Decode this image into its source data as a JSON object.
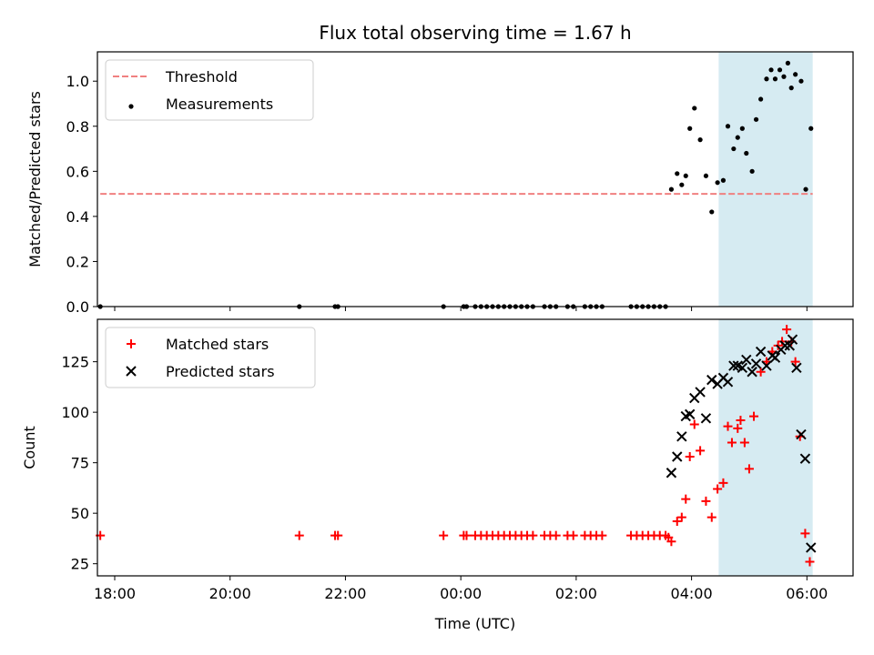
{
  "title": "Flux total observing time = 1.67 h",
  "chart_data": [
    {
      "type": "scatter",
      "ylabel": "Matched/Predicted stars",
      "ylim": [
        0,
        1.13
      ],
      "yticks": [
        "0.0",
        "0.2",
        "0.4",
        "0.6",
        "0.8",
        "1.0"
      ],
      "ytick_values": [
        0,
        0.2,
        0.4,
        0.6,
        0.8,
        1.0
      ],
      "xlim": [
        17.7,
        30.8
      ],
      "highlight_span": [
        28.47,
        30.1
      ],
      "legend": {
        "placement": "upper left",
        "entries": [
          "Threshold",
          "Measurements"
        ]
      },
      "threshold": {
        "name": "Threshold",
        "value": 0.5,
        "x_range": [
          17.75,
          30.1
        ],
        "color": "#f08080"
      },
      "series": [
        {
          "name": "Measurements",
          "color": "#000000",
          "points": [
            [
              17.75,
              0
            ],
            [
              21.2,
              0
            ],
            [
              21.82,
              0
            ],
            [
              21.87,
              0
            ],
            [
              23.7,
              0
            ],
            [
              24.05,
              0
            ],
            [
              24.1,
              0
            ],
            [
              24.25,
              0
            ],
            [
              24.35,
              0
            ],
            [
              24.45,
              0
            ],
            [
              24.55,
              0
            ],
            [
              24.65,
              0
            ],
            [
              24.75,
              0
            ],
            [
              24.85,
              0
            ],
            [
              24.95,
              0
            ],
            [
              25.05,
              0
            ],
            [
              25.15,
              0
            ],
            [
              25.25,
              0
            ],
            [
              25.45,
              0
            ],
            [
              25.55,
              0
            ],
            [
              25.65,
              0
            ],
            [
              25.85,
              0
            ],
            [
              25.95,
              0
            ],
            [
              26.15,
              0
            ],
            [
              26.25,
              0
            ],
            [
              26.35,
              0
            ],
            [
              26.45,
              0
            ],
            [
              26.95,
              0
            ],
            [
              27.05,
              0
            ],
            [
              27.15,
              0
            ],
            [
              27.25,
              0
            ],
            [
              27.35,
              0
            ],
            [
              27.45,
              0
            ],
            [
              27.55,
              0
            ],
            [
              27.65,
              0.52
            ],
            [
              27.75,
              0.59
            ],
            [
              27.83,
              0.54
            ],
            [
              27.9,
              0.58
            ],
            [
              27.97,
              0.79
            ],
            [
              28.05,
              0.88
            ],
            [
              28.15,
              0.74
            ],
            [
              28.25,
              0.58
            ],
            [
              28.35,
              0.42
            ],
            [
              28.45,
              0.55
            ],
            [
              28.55,
              0.56
            ],
            [
              28.63,
              0.8
            ],
            [
              28.73,
              0.7
            ],
            [
              28.8,
              0.75
            ],
            [
              28.88,
              0.79
            ],
            [
              28.95,
              0.68
            ],
            [
              29.05,
              0.6
            ],
            [
              29.12,
              0.83
            ],
            [
              29.2,
              0.92
            ],
            [
              29.3,
              1.01
            ],
            [
              29.38,
              1.05
            ],
            [
              29.45,
              1.01
            ],
            [
              29.53,
              1.05
            ],
            [
              29.6,
              1.02
            ],
            [
              29.67,
              1.08
            ],
            [
              29.73,
              0.97
            ],
            [
              29.8,
              1.03
            ],
            [
              29.9,
              1.0
            ],
            [
              29.98,
              0.52
            ],
            [
              30.07,
              0.79
            ]
          ]
        }
      ]
    },
    {
      "type": "scatter",
      "xlabel": "Time (UTC)",
      "ylabel": "Count",
      "ylim": [
        19,
        146
      ],
      "yticks": [
        "25",
        "50",
        "75",
        "100",
        "125"
      ],
      "ytick_values": [
        25,
        50,
        75,
        100,
        125
      ],
      "xlim": [
        17.7,
        30.8
      ],
      "xticks": [
        "18:00",
        "20:00",
        "22:00",
        "00:00",
        "02:00",
        "04:00",
        "06:00"
      ],
      "xtick_values": [
        18,
        20,
        22,
        24,
        26,
        28,
        30
      ],
      "highlight_span": [
        28.47,
        30.1
      ],
      "legend": {
        "placement": "upper left",
        "entries": [
          "Matched stars",
          "Predicted stars"
        ]
      },
      "series": [
        {
          "name": "Matched stars",
          "marker": "plus",
          "color": "#ff0000",
          "points": [
            [
              17.75,
              39
            ],
            [
              21.2,
              39
            ],
            [
              21.82,
              39
            ],
            [
              21.87,
              39
            ],
            [
              23.7,
              39
            ],
            [
              24.05,
              39
            ],
            [
              24.1,
              39
            ],
            [
              24.25,
              39
            ],
            [
              24.35,
              39
            ],
            [
              24.45,
              39
            ],
            [
              24.55,
              39
            ],
            [
              24.65,
              39
            ],
            [
              24.75,
              39
            ],
            [
              24.85,
              39
            ],
            [
              24.95,
              39
            ],
            [
              25.05,
              39
            ],
            [
              25.15,
              39
            ],
            [
              25.25,
              39
            ],
            [
              25.45,
              39
            ],
            [
              25.55,
              39
            ],
            [
              25.65,
              39
            ],
            [
              25.85,
              39
            ],
            [
              25.95,
              39
            ],
            [
              26.15,
              39
            ],
            [
              26.25,
              39
            ],
            [
              26.35,
              39
            ],
            [
              26.45,
              39
            ],
            [
              26.95,
              39
            ],
            [
              27.05,
              39
            ],
            [
              27.15,
              39
            ],
            [
              27.25,
              39
            ],
            [
              27.35,
              39
            ],
            [
              27.45,
              39
            ],
            [
              27.55,
              39
            ],
            [
              27.6,
              38
            ],
            [
              27.65,
              36
            ],
            [
              27.75,
              46
            ],
            [
              27.83,
              48
            ],
            [
              27.9,
              57
            ],
            [
              27.97,
              78
            ],
            [
              28.05,
              94
            ],
            [
              28.15,
              81
            ],
            [
              28.25,
              56
            ],
            [
              28.35,
              48
            ],
            [
              28.45,
              62
            ],
            [
              28.55,
              65
            ],
            [
              28.63,
              93
            ],
            [
              28.7,
              85
            ],
            [
              28.8,
              92
            ],
            [
              28.85,
              96
            ],
            [
              28.92,
              85
            ],
            [
              29.0,
              72
            ],
            [
              29.08,
              98
            ],
            [
              29.2,
              120
            ],
            [
              29.3,
              125
            ],
            [
              29.4,
              130
            ],
            [
              29.5,
              133
            ],
            [
              29.57,
              135
            ],
            [
              29.65,
              141
            ],
            [
              29.73,
              135
            ],
            [
              29.8,
              125
            ],
            [
              29.88,
              88
            ],
            [
              29.97,
              40
            ],
            [
              30.05,
              26
            ]
          ]
        },
        {
          "name": "Predicted stars",
          "marker": "x",
          "color": "#000000",
          "points": [
            [
              27.65,
              70
            ],
            [
              27.75,
              78
            ],
            [
              27.83,
              88
            ],
            [
              27.9,
              98
            ],
            [
              27.97,
              99
            ],
            [
              28.05,
              107
            ],
            [
              28.15,
              110
            ],
            [
              28.25,
              97
            ],
            [
              28.35,
              116
            ],
            [
              28.45,
              114
            ],
            [
              28.55,
              117
            ],
            [
              28.63,
              115
            ],
            [
              28.73,
              123
            ],
            [
              28.8,
              123
            ],
            [
              28.88,
              122
            ],
            [
              28.95,
              126
            ],
            [
              29.05,
              120
            ],
            [
              29.12,
              124
            ],
            [
              29.2,
              130
            ],
            [
              29.3,
              123
            ],
            [
              29.4,
              128
            ],
            [
              29.45,
              127
            ],
            [
              29.55,
              131
            ],
            [
              29.62,
              133
            ],
            [
              29.7,
              133
            ],
            [
              29.75,
              136
            ],
            [
              29.82,
              122
            ],
            [
              29.9,
              89
            ],
            [
              29.97,
              77
            ],
            [
              30.07,
              33
            ]
          ]
        }
      ]
    }
  ]
}
